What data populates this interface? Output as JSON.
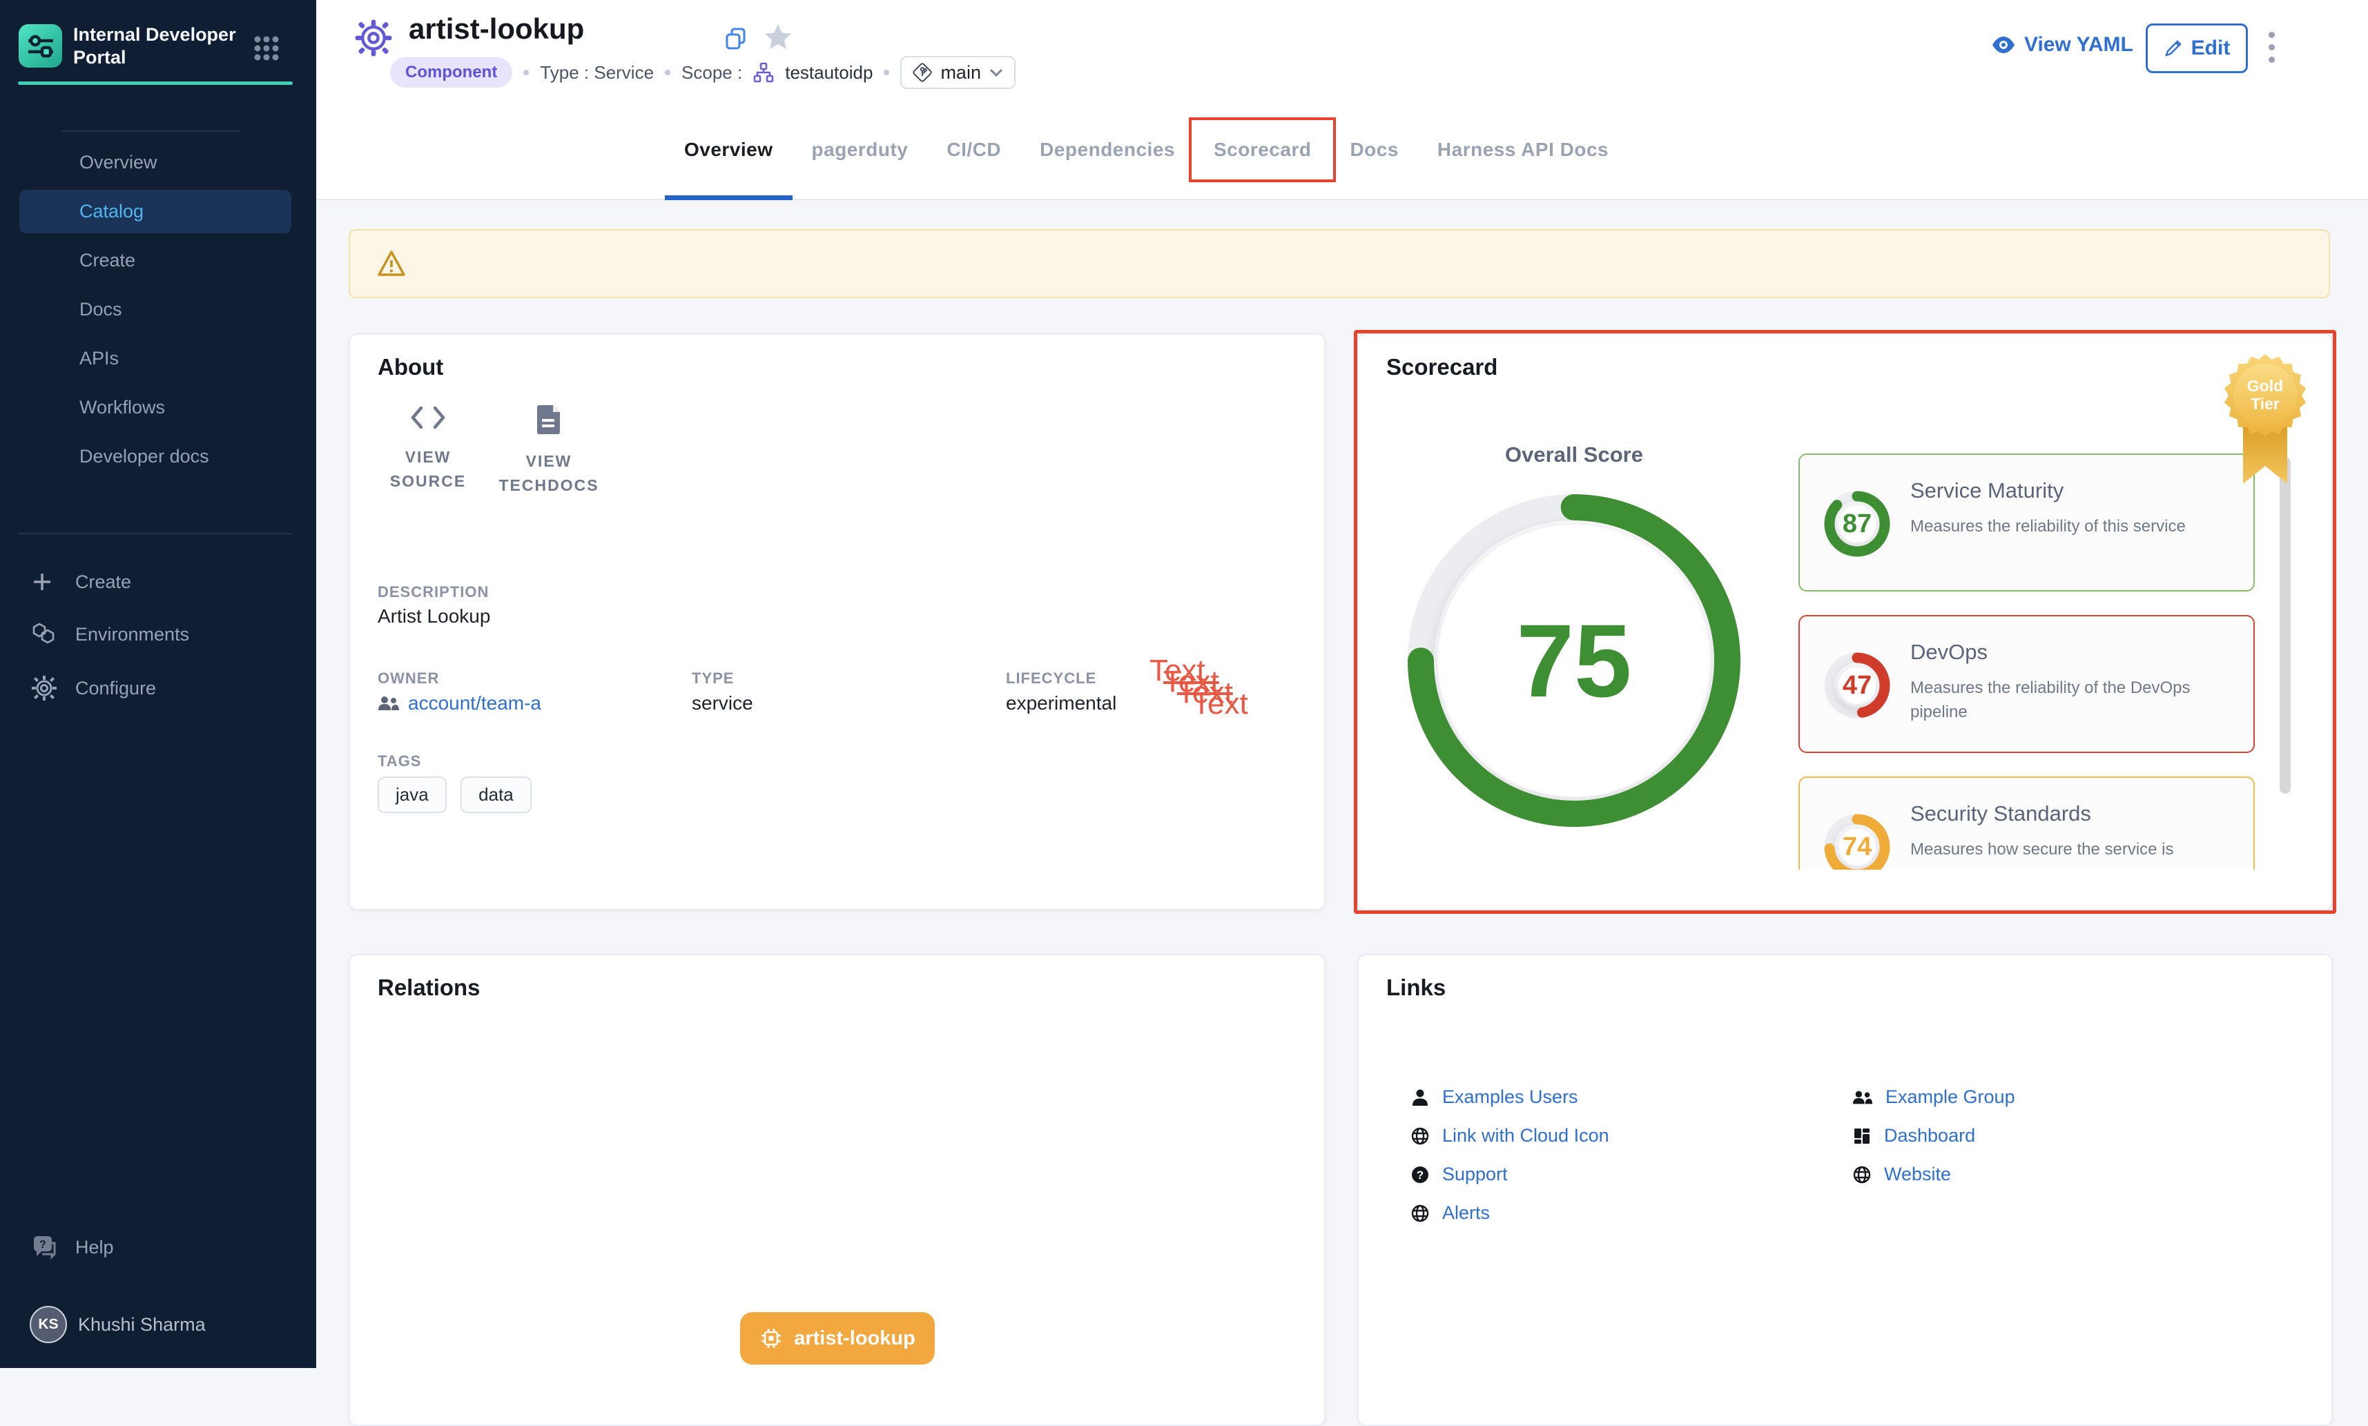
{
  "sidebar": {
    "brand": "Internal Developer Portal",
    "nav": [
      {
        "label": "Overview"
      },
      {
        "label": "Catalog"
      },
      {
        "label": "Create"
      },
      {
        "label": "Docs"
      },
      {
        "label": "APIs"
      },
      {
        "label": "Workflows"
      },
      {
        "label": "Developer docs"
      }
    ],
    "secondary": [
      {
        "label": "Create",
        "icon": "plus-icon"
      },
      {
        "label": "Environments",
        "icon": "hexagons-icon"
      },
      {
        "label": "Configure",
        "icon": "gear-icon"
      }
    ],
    "help_label": "Help",
    "user": {
      "initials": "KS",
      "name": "Khushi Sharma"
    }
  },
  "header": {
    "title": "artist-lookup",
    "kind_chip": "Component",
    "type_label": "Type : Service",
    "scope_label": "Scope :",
    "scope_value": "testautoidp",
    "branch_selector": "main",
    "view_yaml_label": "View YAML",
    "edit_label": "Edit"
  },
  "tabs": [
    {
      "label": "Overview"
    },
    {
      "label": "pagerduty"
    },
    {
      "label": "CI/CD"
    },
    {
      "label": "Dependencies"
    },
    {
      "label": "Scorecard"
    },
    {
      "label": "Docs"
    },
    {
      "label": "Harness API Docs"
    }
  ],
  "about": {
    "title": "About",
    "actions": [
      {
        "label": "VIEW SOURCE",
        "icon": "code-icon"
      },
      {
        "label": "VIEW TECHDOCS",
        "icon": "docs-icon"
      }
    ],
    "description_label": "DESCRIPTION",
    "description": "Artist Lookup",
    "owner_label": "OWNER",
    "owner": "account/team-a",
    "type_label": "TYPE",
    "type": "service",
    "lifecycle_label": "LIFECYCLE",
    "lifecycle": "experimental",
    "overlay_word": "Text",
    "tags_label": "TAGS",
    "tags": {
      "0": "java",
      "1": "data"
    }
  },
  "scorecard": {
    "title": "Scorecard",
    "badge": {
      "line1": "Gold",
      "line2": "Tier"
    },
    "overall_label": "Overall Score",
    "overall": {
      "value": 75,
      "color": "#3e8e33"
    },
    "checks": [
      {
        "name": "Service Maturity",
        "description": "Measures the reliability of this service",
        "value": 87,
        "color": "#3e8e33",
        "border": "#86bb6a"
      },
      {
        "name": "DevOps",
        "description": "Measures the reliability of the DevOps pipeline",
        "value": 47,
        "color": "#d03c2a",
        "border": "#dc4430"
      },
      {
        "name": "Security Standards",
        "description": "Measures how secure the service is",
        "value": 74,
        "color": "#efac39",
        "border": "#f3bb4e"
      }
    ]
  },
  "relations": {
    "title": "Relations",
    "node_label": "artist-lookup"
  },
  "links": {
    "title": "Links",
    "col1": [
      {
        "label": "Examples Users",
        "icon": "user-icon"
      },
      {
        "label": "Link with Cloud Icon",
        "icon": "globe-icon"
      },
      {
        "label": "Support",
        "icon": "question-icon"
      },
      {
        "label": "Alerts",
        "icon": "globe-icon"
      }
    ],
    "col2": [
      {
        "label": "Example Group",
        "icon": "group-icon"
      },
      {
        "label": "Dashboard",
        "icon": "dashboard-icon"
      },
      {
        "label": "Website",
        "icon": "globe-icon"
      }
    ]
  }
}
